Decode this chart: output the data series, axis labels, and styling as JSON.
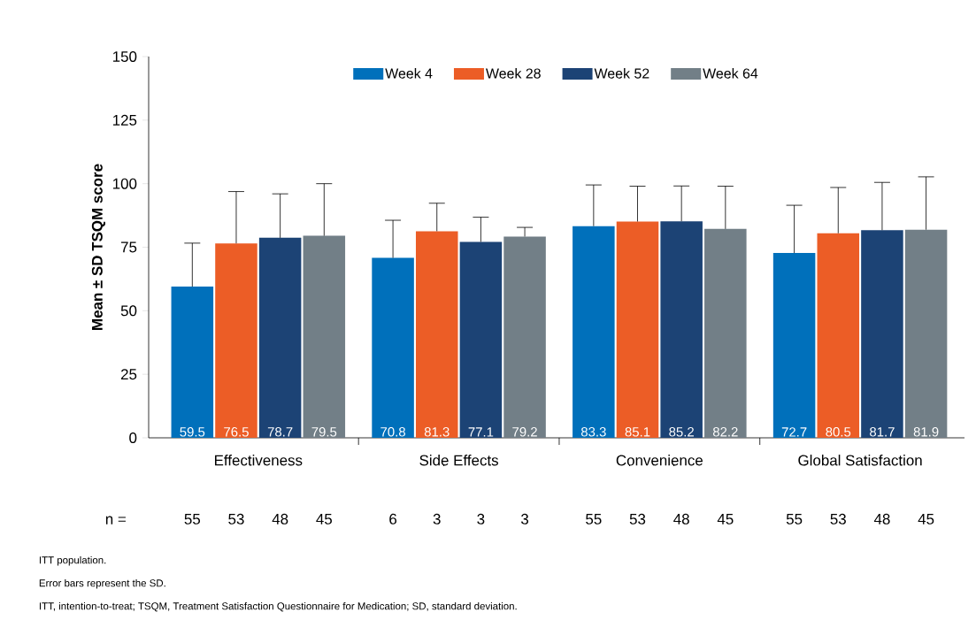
{
  "chart_data": {
    "type": "bar",
    "ylabel": "Mean ± SD TSQM score",
    "categories": [
      "Effectiveness",
      "Side Effects",
      "Convenience",
      "Global Satisfaction"
    ],
    "series": [
      {
        "name": "Week 4",
        "color": "#0070bb",
        "values": [
          59.5,
          70.8,
          83.3,
          72.7
        ],
        "errors": [
          [
            59.5,
            76.6
          ],
          [
            70.8,
            85.6
          ],
          [
            83.3,
            99.5
          ],
          [
            72.7,
            91.5
          ]
        ]
      },
      {
        "name": "Week 28",
        "color": "#ec5d26",
        "values": [
          76.5,
          81.3,
          85.1,
          80.5
        ],
        "errors": [
          [
            76.5,
            96.9
          ],
          [
            81.3,
            92.3
          ],
          [
            85.1,
            99.0
          ],
          [
            80.5,
            98.5
          ]
        ]
      },
      {
        "name": "Week 52",
        "color": "#1c4375",
        "values": [
          78.7,
          77.1,
          85.2,
          81.7
        ],
        "errors": [
          [
            78.7,
            96.0
          ],
          [
            77.1,
            86.8
          ],
          [
            85.2,
            99.1
          ],
          [
            81.7,
            100.5
          ]
        ]
      },
      {
        "name": "Week 64",
        "color": "#727f87",
        "values": [
          79.5,
          79.2,
          82.2,
          81.9
        ],
        "errors": [
          [
            79.5,
            100.0
          ],
          [
            79.2,
            82.8
          ],
          [
            82.2,
            99.0
          ],
          [
            81.9,
            102.7
          ]
        ]
      }
    ],
    "ylim": [
      0,
      150
    ],
    "yticks": [
      0,
      25,
      50,
      75,
      100,
      125,
      150
    ],
    "data_labels": true,
    "legend": "top",
    "grid": false,
    "annotations": [
      "n =",
      "55",
      "53",
      "48",
      "45",
      "6",
      "3",
      "3",
      "3",
      "55",
      "53",
      "48",
      "45",
      "55",
      "53",
      "48",
      "45",
      "ITT population.",
      "Error bars represent the SD.",
      "ITT, intention-to-treat; TSQM, Treatment Satisfaction Questionnaire for Medication; SD, standard deviation."
    ]
  }
}
